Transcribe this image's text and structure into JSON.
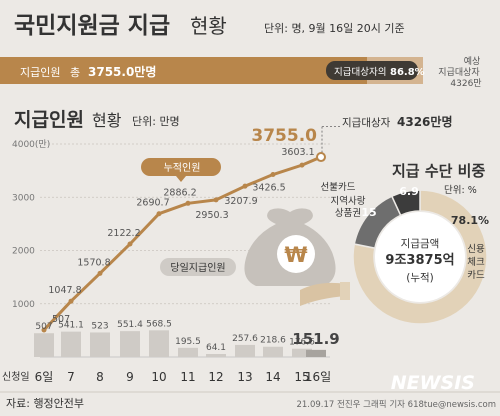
{
  "header": {
    "title": "국민지원금 지급",
    "title_suffix": "현황",
    "unit_note": "단위: 명, 9월 16일 20시 기준"
  },
  "summary_bar": {
    "label": "지급인원",
    "total_prefix": "총",
    "total_value": "3755.0만명",
    "target_ratio_label": "지급대상자의",
    "target_ratio_value": "86.8%",
    "progress_fraction": 0.868,
    "expected_line1": "예상",
    "expected_line2": "지급대상자",
    "expected_line3": "4326만"
  },
  "section": {
    "title": "지급인원",
    "title_suffix": "현황",
    "unit": "단위: 만명",
    "target_label": "지급대상자",
    "target_value": "4326만명"
  },
  "chart_data": [
    {
      "type": "line",
      "series_name": "누적인원",
      "categories": [
        "6일",
        "7",
        "8",
        "9",
        "10",
        "11",
        "12",
        "13",
        "14",
        "15",
        "16일"
      ],
      "values": [
        507,
        1047.8,
        1570.8,
        2122.2,
        2690.7,
        2886.2,
        2950.3,
        3207.9,
        3426.5,
        3603.1,
        3755.0
      ],
      "value_labels": [
        "507",
        "1047.8",
        "1570.8",
        "2122.2",
        "2690.7",
        "2886.2",
        "2950.3",
        "3207.9",
        "3426.5",
        "3603.1",
        "3755.0"
      ],
      "ylabel": "4000(만)",
      "yticks": [
        "4000(만)",
        "3000",
        "2000",
        "1000"
      ],
      "ylim": [
        0,
        4000
      ],
      "target_value": 4326
    },
    {
      "type": "bar",
      "series_name": "당일지급인원",
      "xlabel": "신청일",
      "categories": [
        "6일",
        "7",
        "8",
        "9",
        "10",
        "11",
        "12",
        "13",
        "14",
        "15",
        "16일"
      ],
      "values": [
        507,
        541.1,
        523,
        551.4,
        568.5,
        195.5,
        64.1,
        257.6,
        218.6,
        176.6,
        151.9
      ],
      "value_labels": [
        "507",
        "541.1",
        "523",
        "551.4",
        "568.5",
        "195.5",
        "64.1",
        "257.6",
        "218.6",
        "176.6",
        "151.9"
      ]
    },
    {
      "type": "pie",
      "title": "지급 수단 비중",
      "unit": "단위: %",
      "slices": [
        {
          "label": "신용 체크 카드",
          "value": 78.1,
          "value_label": "78.1%",
          "color": "#e2d2b8"
        },
        {
          "label": "지역사랑 상품권",
          "value": 15,
          "value_label": "15",
          "color": "#6e6e6e"
        },
        {
          "label": "선불카드",
          "value": 6.9,
          "value_label": "6.9",
          "color": "#3c3c3c"
        }
      ],
      "center_line1": "지급금액",
      "center_line2": "9조3875억",
      "center_line3": "(누적)"
    }
  ],
  "pie_labels": {
    "card_lines": [
      "신용",
      "체크",
      "카드"
    ],
    "local_lines": [
      "지역사랑",
      "상품권"
    ],
    "prepaid": "선불카드"
  },
  "icon": {
    "won_symbol": "₩"
  },
  "footer": {
    "source": "자료: 행정안전부",
    "credit": "21.09.17 전진우 그래픽 기자 618tue@newsis.com",
    "logo": "NEWSIS"
  },
  "colors": {
    "accent": "#b8864b",
    "bar": "#cfcbc6",
    "bar_last": "#a7a39e",
    "dark": "#333333",
    "background": "#ece9e5"
  }
}
